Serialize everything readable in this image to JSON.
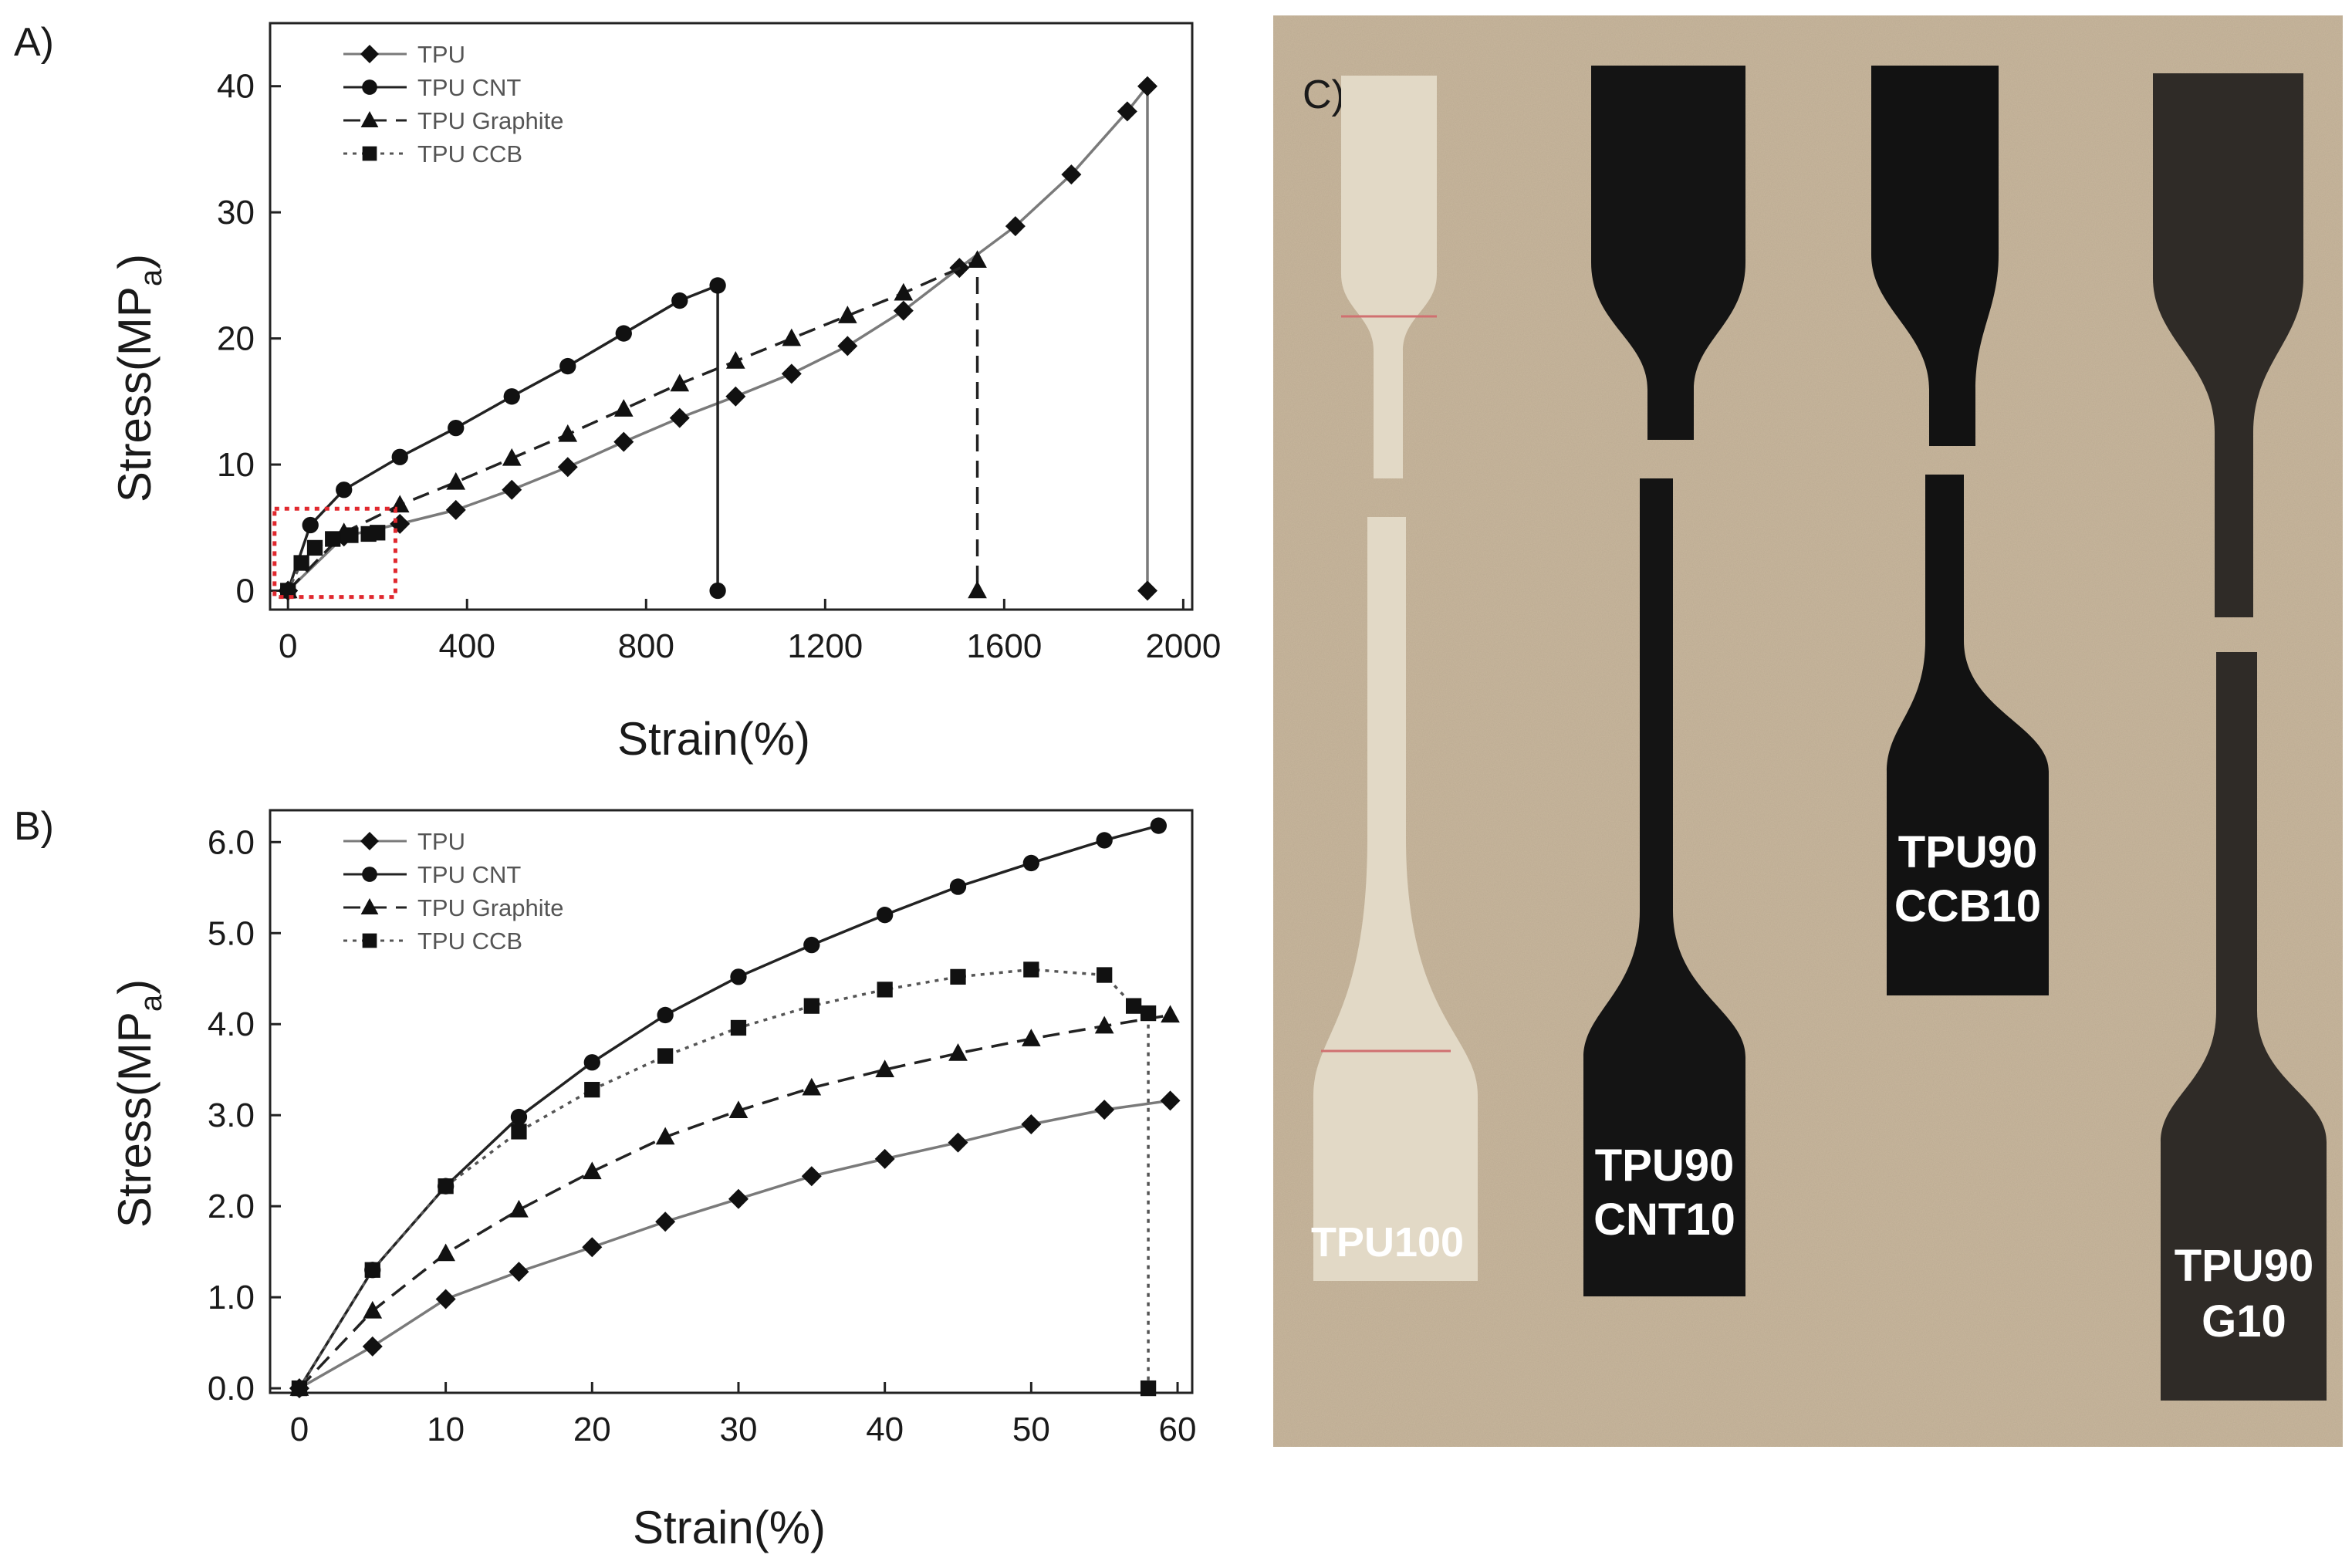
{
  "chart_data": [
    {
      "panel": "A)",
      "type": "line",
      "xlabel": "Strain(%)",
      "ylabel_main": "Stress(MP",
      "ylabel_sub": "a",
      "ylabel_close": ")",
      "xlim": [
        -40,
        2020
      ],
      "ylim": [
        -1.5,
        45
      ],
      "xticks": [
        0,
        400,
        800,
        1200,
        1600,
        2000
      ],
      "yticks": [
        0,
        10,
        20,
        30,
        40
      ],
      "legend_position": "top-left",
      "inset_box": {
        "x": [
          -30,
          240
        ],
        "y": [
          -0.5,
          6.5
        ],
        "color": "#e0282e"
      },
      "series": [
        {
          "name": "TPU",
          "marker": "diamond",
          "dash": "solid",
          "line_color": "#7a7a7a",
          "x": [
            0,
            125,
            250,
            375,
            500,
            625,
            750,
            875,
            1000,
            1125,
            1250,
            1375,
            1500,
            1625,
            1750,
            1875,
            1920,
            1920
          ],
          "y": [
            0,
            4.3,
            5.3,
            6.4,
            8.0,
            9.8,
            11.8,
            13.7,
            15.4,
            17.2,
            19.4,
            22.2,
            25.6,
            28.9,
            33.0,
            38.0,
            40.0,
            0
          ]
        },
        {
          "name": "TPU CNT",
          "marker": "circle",
          "dash": "solid",
          "line_color": "#222222",
          "x": [
            0,
            50,
            125,
            250,
            375,
            500,
            625,
            750,
            875,
            960,
            960
          ],
          "y": [
            0,
            5.2,
            8.0,
            10.6,
            12.9,
            15.4,
            17.8,
            20.4,
            23.0,
            24.2,
            0
          ]
        },
        {
          "name": "TPU Graphite",
          "marker": "triangle",
          "dash": "dashed",
          "line_color": "#222222",
          "x": [
            0,
            125,
            250,
            375,
            500,
            625,
            750,
            875,
            1000,
            1125,
            1250,
            1375,
            1540,
            1540
          ],
          "y": [
            0,
            4.6,
            6.8,
            8.6,
            10.5,
            12.4,
            14.4,
            16.4,
            18.2,
            20.0,
            21.8,
            23.6,
            26.2,
            0
          ]
        },
        {
          "name": "TPU CCB",
          "marker": "square",
          "dash": "dotted",
          "line_color": "#555555",
          "x": [
            0,
            30,
            60,
            100,
            140,
            180,
            200
          ],
          "y": [
            0,
            2.2,
            3.4,
            4.1,
            4.4,
            4.5,
            4.6
          ]
        }
      ]
    },
    {
      "panel": "B)",
      "type": "line",
      "xlabel": "Strain(%)",
      "ylabel_main": "Stress(MP",
      "ylabel_sub": "a",
      "ylabel_close": ")",
      "xlim": [
        -2,
        61
      ],
      "ylim": [
        -0.05,
        6.35
      ],
      "xticks": [
        0,
        10,
        20,
        30,
        40,
        50,
        60
      ],
      "yticks": [
        0.0,
        1.0,
        2.0,
        3.0,
        4.0,
        5.0,
        6.0
      ],
      "ytick_labels": [
        "0.0",
        "1.0",
        "2.0",
        "3.0",
        "4.0",
        "5.0",
        "6.0"
      ],
      "legend_position": "top-left",
      "series": [
        {
          "name": "TPU",
          "marker": "diamond",
          "dash": "solid",
          "line_color": "#7a7a7a",
          "x": [
            0,
            5,
            10,
            15,
            20,
            25,
            30,
            35,
            40,
            45,
            50,
            55,
            59.5
          ],
          "y": [
            0,
            0.46,
            0.98,
            1.28,
            1.55,
            1.83,
            2.08,
            2.33,
            2.52,
            2.7,
            2.9,
            3.06,
            3.16
          ]
        },
        {
          "name": "TPU CNT",
          "marker": "circle",
          "dash": "solid",
          "line_color": "#222222",
          "x": [
            0,
            5,
            10,
            15,
            20,
            25,
            30,
            35,
            40,
            45,
            50,
            55,
            58.7
          ],
          "y": [
            0,
            1.3,
            2.22,
            2.98,
            3.58,
            4.1,
            4.52,
            4.87,
            5.2,
            5.51,
            5.77,
            6.02,
            6.18
          ]
        },
        {
          "name": "TPU Graphite",
          "marker": "triangle",
          "dash": "dashed",
          "line_color": "#222222",
          "x": [
            0,
            5,
            10,
            15,
            20,
            25,
            30,
            35,
            40,
            45,
            50,
            55,
            59.5
          ],
          "y": [
            0,
            0.85,
            1.48,
            1.96,
            2.38,
            2.76,
            3.05,
            3.3,
            3.5,
            3.68,
            3.84,
            3.98,
            4.1
          ]
        },
        {
          "name": "TPU CCB",
          "marker": "square",
          "dash": "dotted",
          "line_color": "#555555",
          "x": [
            0,
            5,
            10,
            15,
            20,
            25,
            30,
            35,
            40,
            45,
            50,
            55,
            57,
            58,
            58
          ],
          "y": [
            0,
            1.3,
            2.22,
            2.82,
            3.28,
            3.65,
            3.96,
            4.2,
            4.38,
            4.52,
            4.6,
            4.54,
            4.2,
            4.12,
            0
          ]
        }
      ]
    }
  ],
  "photo": {
    "panel_label": "C)",
    "background_color": "#c9b79d",
    "specimens": [
      {
        "label_line1": "TPU100",
        "label_line2": "",
        "color": "#e2d9c6"
      },
      {
        "label_line1": "TPU90",
        "label_line2": "CNT10",
        "color": "#141414"
      },
      {
        "label_line1": "TPU90",
        "label_line2": "CCB10",
        "color": "#121212"
      },
      {
        "label_line1": "TPU90",
        "label_line2": "G10",
        "color": "#2f2b27"
      }
    ]
  }
}
